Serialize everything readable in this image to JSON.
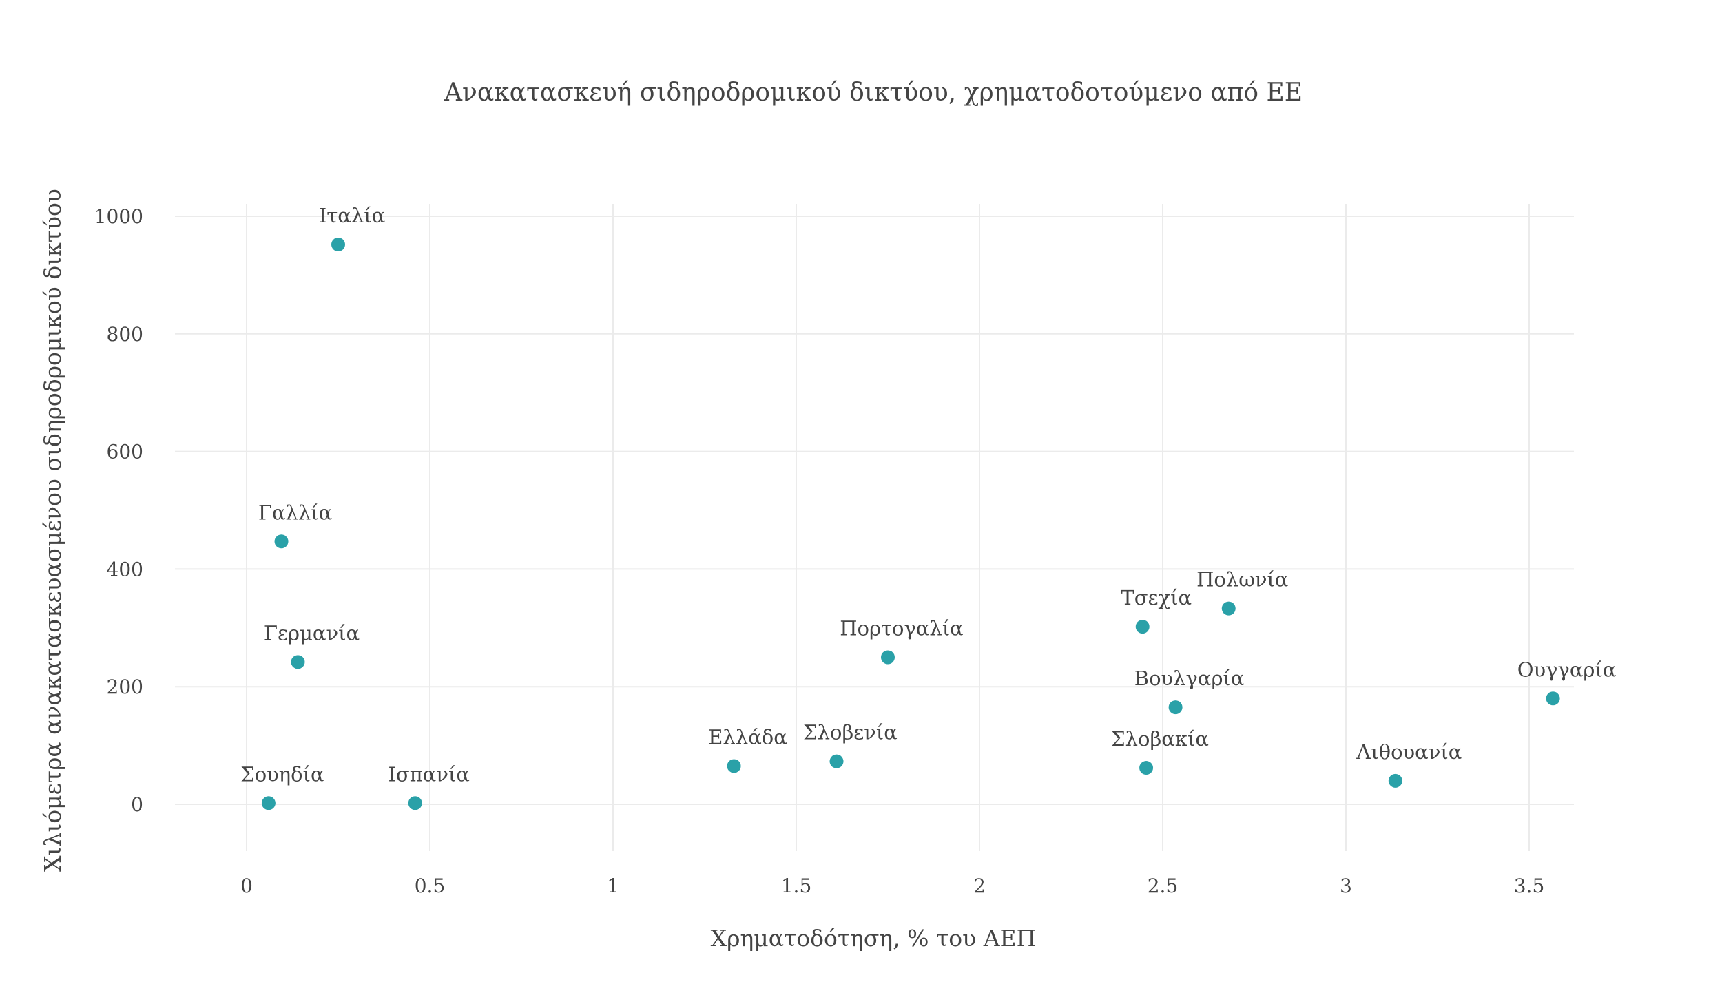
{
  "chart_data": {
    "type": "scatter",
    "title": "Ανακατασκευή σιδηροδρομικού δικτύου, χρηματοδοτούμενο από ΕΕ",
    "xlabel": "Χρηματοδότηση, % του ΑΕΠ",
    "ylabel": "Χιλιόμετρα ανακατασκευασμένου σιδηροδρομικού δικτύου",
    "xlim": [
      -0.2,
      3.8
    ],
    "ylim": [
      -75,
      1020
    ],
    "xticks": [
      0,
      0.5,
      1,
      1.5,
      2,
      2.5,
      3,
      3.5
    ],
    "xtick_labels": [
      "0",
      "0.5",
      "1",
      "1.5",
      "2",
      "2.5",
      "3",
      "3.5"
    ],
    "yticks": [
      0,
      200,
      400,
      600,
      800,
      1000
    ],
    "ytick_labels": [
      "0",
      "200",
      "400",
      "600",
      "800",
      "1000"
    ],
    "grid": true,
    "marker_color": "#2aa1a8",
    "points": [
      {
        "label": "Ιταλία",
        "x": 0.25,
        "y": 952
      },
      {
        "label": "Γαλλία",
        "x": 0.095,
        "y": 447
      },
      {
        "label": "Γερμανία",
        "x": 0.14,
        "y": 242
      },
      {
        "label": "Σουηδία",
        "x": 0.06,
        "y": 2
      },
      {
        "label": "Ισπανία",
        "x": 0.46,
        "y": 2
      },
      {
        "label": "Ελλάδα",
        "x": 1.33,
        "y": 65
      },
      {
        "label": "Σλοβενία",
        "x": 1.61,
        "y": 73
      },
      {
        "label": "Πορτογαλία",
        "x": 1.75,
        "y": 250
      },
      {
        "label": "Τσεχία",
        "x": 2.445,
        "y": 302
      },
      {
        "label": "Πολωνία",
        "x": 2.68,
        "y": 333
      },
      {
        "label": "Βουλγαρία",
        "x": 2.535,
        "y": 165
      },
      {
        "label": "Σλοβακία",
        "x": 2.455,
        "y": 62
      },
      {
        "label": "Λιθουανία",
        "x": 3.135,
        "y": 40
      },
      {
        "label": "Ουγγαρία",
        "x": 3.565,
        "y": 180
      }
    ]
  }
}
